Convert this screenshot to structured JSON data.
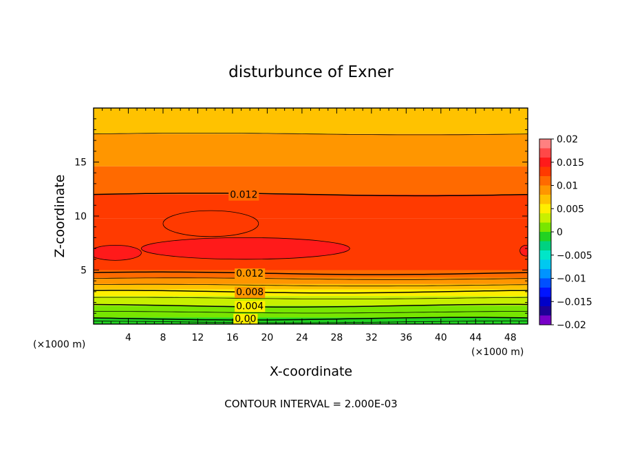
{
  "chart_data": {
    "type": "heatmap",
    "title": "disturbunce of Exner",
    "xlabel": "X-coordinate",
    "ylabel": "Z-coordinate",
    "x_unit": "(×1000 m)",
    "y_unit": "(×1000 m)",
    "xlim": [
      0,
      50
    ],
    "ylim": [
      0,
      20
    ],
    "x_ticks": [
      "4",
      "8",
      "12",
      "16",
      "20",
      "24",
      "28",
      "32",
      "36",
      "40",
      "44",
      "48"
    ],
    "y_ticks": [
      "5",
      "10",
      "15"
    ],
    "footnote": "CONTOUR INTERVAL = 2.000E-03",
    "colorbar": {
      "min": -0.02,
      "max": 0.02,
      "labels": [
        "0.02",
        "0.015",
        "0.01",
        "0.005",
        "0",
        "−0.005",
        "−0.01",
        "−0.015",
        "−0.02"
      ],
      "levels": [
        {
          "lo": 0.018,
          "hi": 0.02,
          "color": "#ff8080"
        },
        {
          "lo": 0.016,
          "hi": 0.018,
          "color": "#ff4848"
        },
        {
          "lo": 0.014,
          "hi": 0.016,
          "color": "#ff1a1a"
        },
        {
          "lo": 0.012,
          "hi": 0.014,
          "color": "#ff3a00"
        },
        {
          "lo": 0.01,
          "hi": 0.012,
          "color": "#ff6a00"
        },
        {
          "lo": 0.008,
          "hi": 0.01,
          "color": "#ff9600"
        },
        {
          "lo": 0.006,
          "hi": 0.008,
          "color": "#ffc200"
        },
        {
          "lo": 0.004,
          "hi": 0.006,
          "color": "#ffee00"
        },
        {
          "lo": 0.002,
          "hi": 0.004,
          "color": "#c8f000"
        },
        {
          "lo": 0.0,
          "hi": 0.002,
          "color": "#78e600"
        },
        {
          "lo": -0.002,
          "hi": 0.0,
          "color": "#22d222"
        },
        {
          "lo": -0.004,
          "hi": -0.002,
          "color": "#00d280"
        },
        {
          "lo": -0.006,
          "hi": -0.004,
          "color": "#00e6c8"
        },
        {
          "lo": -0.008,
          "hi": -0.006,
          "color": "#00c8f0"
        },
        {
          "lo": -0.01,
          "hi": -0.008,
          "color": "#0094ff"
        },
        {
          "lo": -0.012,
          "hi": -0.01,
          "color": "#0050ff"
        },
        {
          "lo": -0.014,
          "hi": -0.012,
          "color": "#0014ff"
        },
        {
          "lo": -0.016,
          "hi": -0.014,
          "color": "#0000c8"
        },
        {
          "lo": -0.018,
          "hi": -0.016,
          "color": "#1e0096"
        },
        {
          "lo": -0.02,
          "hi": -0.018,
          "color": "#7800c8"
        }
      ]
    },
    "bands": [
      {
        "z_top": 20.0,
        "value": 0.007
      },
      {
        "z_top": 17.6,
        "value": 0.009
      },
      {
        "z_top": 14.6,
        "value": 0.011
      },
      {
        "z_top": 12.0,
        "value": 0.013
      },
      {
        "z_top": 9.8,
        "value": 0.0135
      },
      {
        "z_top": 5.0,
        "value": 0.011
      },
      {
        "z_top": 4.3,
        "value": 0.009
      },
      {
        "z_top": 3.7,
        "value": 0.007
      },
      {
        "z_top": 3.2,
        "value": 0.005
      },
      {
        "z_top": 2.6,
        "value": 0.003
      },
      {
        "z_top": 1.7,
        "value": 0.001
      },
      {
        "z_top": 0.6,
        "value": -0.001
      }
    ],
    "lobes": [
      {
        "x_center": 13.5,
        "z_center": 9.3,
        "x_radius": 5.5,
        "z_radius": 1.2,
        "value": 0.0135
      },
      {
        "x_center": 17.5,
        "z_center": 7.0,
        "x_radius": 12.0,
        "z_radius": 1.0,
        "value": 0.015
      },
      {
        "x_center": 2.5,
        "z_center": 6.6,
        "x_radius": 3.0,
        "z_radius": 0.7,
        "value": 0.015
      },
      {
        "x_center": 49.8,
        "z_center": 6.8,
        "x_radius": 0.7,
        "z_radius": 0.5,
        "value": 0.015
      }
    ],
    "contours": [
      {
        "value": "0.012",
        "z": 12.0,
        "label_x": 17.3
      },
      {
        "value": "0.012",
        "z": 4.7,
        "label_x": 18.0
      },
      {
        "value": "0.008",
        "z": 3.0,
        "label_x": 18.0
      },
      {
        "value": "0.004",
        "z": 1.7,
        "label_x": 18.0
      },
      {
        "value": "0.00",
        "z": 0.5,
        "label_x": 17.5
      }
    ],
    "secondary_contours": [
      {
        "z": 17.6
      },
      {
        "z": 4.2
      },
      {
        "z": 3.6
      },
      {
        "z": 2.4
      },
      {
        "z": 1.1
      },
      {
        "z": 0.2
      }
    ]
  }
}
